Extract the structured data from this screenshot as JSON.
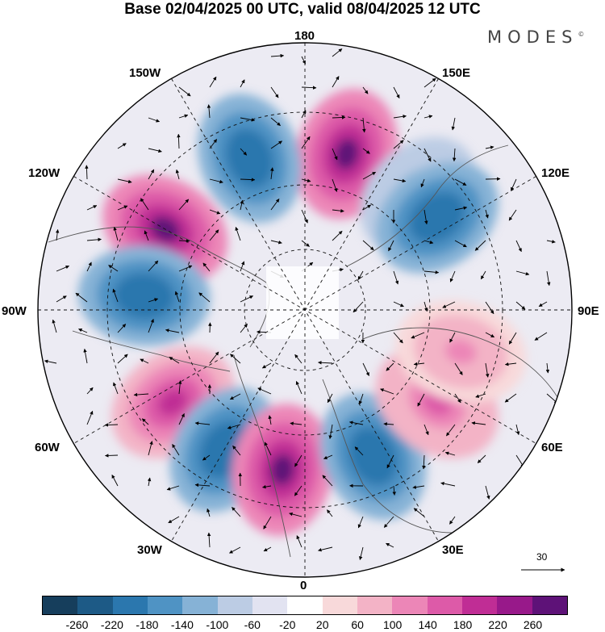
{
  "title": "Base 02/04/2025 00 UTC, valid 08/04/2025 12 UTC",
  "logo": {
    "text": "MODES",
    "mark": "©"
  },
  "longitude_labels": {
    "lon180": "180",
    "lon150e": "150E",
    "lon120e": "120E",
    "lon90e": "90E",
    "lon60e": "60E",
    "lon30e": "30E",
    "lon0": "0",
    "lon30w": "30W",
    "lon60w": "60W",
    "lon90w": "90W",
    "lon120w": "120W",
    "lon150w": "150W"
  },
  "reference_vector": {
    "value": "30"
  },
  "colorbar": {
    "colors": [
      "#163e5c",
      "#1d5a86",
      "#2b77ae",
      "#4f93c4",
      "#86b2d6",
      "#bccce4",
      "#e2e3f1",
      "#ffffff",
      "#f8d9da",
      "#f3b3c6",
      "#ec86b7",
      "#dd5aa8",
      "#c02d95",
      "#98198a",
      "#5e1278"
    ],
    "ticks": [
      "-260",
      "-220",
      "-180",
      "-140",
      "-100",
      "-60",
      "-20",
      "20",
      "60",
      "100",
      "140",
      "180",
      "220",
      "260"
    ]
  },
  "map_features": {
    "anomaly_centers": [
      {
        "lon": 165,
        "value": 260
      },
      {
        "lon": -160,
        "value": -220
      },
      {
        "lon": 135,
        "value": -140
      },
      {
        "lon": 125,
        "value": -220
      },
      {
        "lon": -120,
        "value": 260
      },
      {
        "lon": -95,
        "value": -220
      },
      {
        "lon": -55,
        "value": 180
      },
      {
        "lon": -30,
        "value": -220
      },
      {
        "lon": -8,
        "value": 260
      },
      {
        "lon": 25,
        "value": -220
      },
      {
        "lon": 55,
        "value": 140
      },
      {
        "lon": 75,
        "value": 100
      }
    ]
  }
}
